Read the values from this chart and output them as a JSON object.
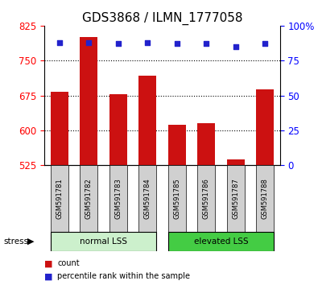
{
  "title": "GDS3868 / ILMN_1777058",
  "samples": [
    "GSM591781",
    "GSM591782",
    "GSM591783",
    "GSM591784",
    "GSM591785",
    "GSM591786",
    "GSM591787",
    "GSM591788"
  ],
  "bar_values": [
    683,
    800,
    678,
    718,
    612,
    615,
    537,
    688
  ],
  "percentile_values": [
    88,
    88,
    87,
    88,
    87,
    87,
    85,
    87
  ],
  "y_min": 525,
  "y_max": 825,
  "y_ticks": [
    525,
    600,
    675,
    750,
    825
  ],
  "y_right_ticks": [
    0,
    25,
    50,
    75,
    100
  ],
  "y_right_labels": [
    "0",
    "25",
    "50",
    "75",
    "100%"
  ],
  "bar_color": "#cc1111",
  "dot_color": "#2222cc",
  "group1_label": "normal LSS",
  "group2_label": "elevated LSS",
  "group1_count": 4,
  "group2_count": 4,
  "stress_label": "stress",
  "legend_count_label": "count",
  "legend_pct_label": "percentile rank within the sample",
  "bg_color": "#ffffff",
  "group1_bg": "#ccf0cc",
  "group2_bg": "#44cc44",
  "sample_bg": "#d0d0d0",
  "title_fontsize": 11,
  "tick_fontsize": 8.5
}
